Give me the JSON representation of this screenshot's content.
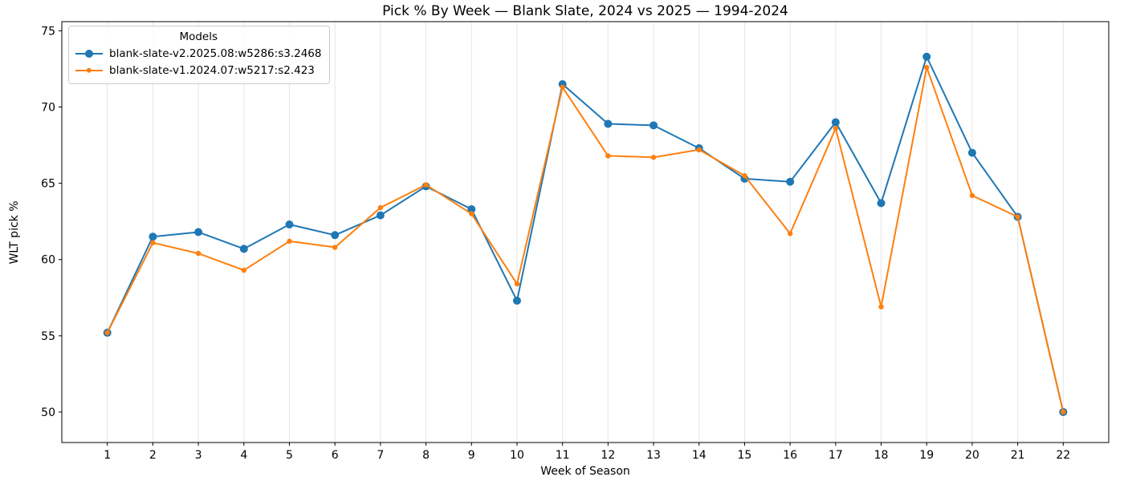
{
  "page": {
    "title": "Pick % By Week — Blank Slate, 2024 vs 2025 — 1994-2024"
  },
  "chart_data": {
    "type": "line",
    "title": "Pick % By Week — Blank Slate, 2024 vs 2025 — 1994-2024",
    "xlabel": "Week of Season",
    "ylabel": "WLT pick %",
    "x": [
      1,
      2,
      3,
      4,
      5,
      6,
      7,
      8,
      9,
      10,
      11,
      12,
      13,
      14,
      15,
      16,
      17,
      18,
      19,
      20,
      21,
      22
    ],
    "series": [
      {
        "name": "blank-slate-v2.2025.08:w5286:s3.2468",
        "color": "#1f77b4",
        "marker": "circle-large",
        "marker_radius": 5,
        "values": [
          55.2,
          61.5,
          61.8,
          60.7,
          62.3,
          61.6,
          62.9,
          64.8,
          63.3,
          57.3,
          71.5,
          68.9,
          68.8,
          67.3,
          65.3,
          65.1,
          69.0,
          63.7,
          73.3,
          67.0,
          62.8,
          50.0
        ]
      },
      {
        "name": "blank-slate-v1.2024.07:w5217:s2.423",
        "color": "#ff7f0e",
        "marker": "circle-small",
        "marker_radius": 3.2,
        "values": [
          55.2,
          61.1,
          60.4,
          59.3,
          61.2,
          60.8,
          63.4,
          64.9,
          63.0,
          58.4,
          71.3,
          66.8,
          66.7,
          67.2,
          65.5,
          61.7,
          68.6,
          56.9,
          72.6,
          64.2,
          62.8,
          50.0
        ]
      }
    ],
    "legend": {
      "title": "Models",
      "position": "upper left"
    },
    "xlim": [
      0,
      23
    ],
    "ylim": [
      48.0,
      75.6
    ],
    "xticks": [
      1,
      2,
      3,
      4,
      5,
      6,
      7,
      8,
      9,
      10,
      11,
      12,
      13,
      14,
      15,
      16,
      17,
      18,
      19,
      20,
      21,
      22
    ],
    "yticks": [
      50,
      55,
      60,
      65,
      70,
      75
    ],
    "grid": "vertical-only",
    "grid_color": "#e5e5e5",
    "spine_color": "#000000"
  }
}
